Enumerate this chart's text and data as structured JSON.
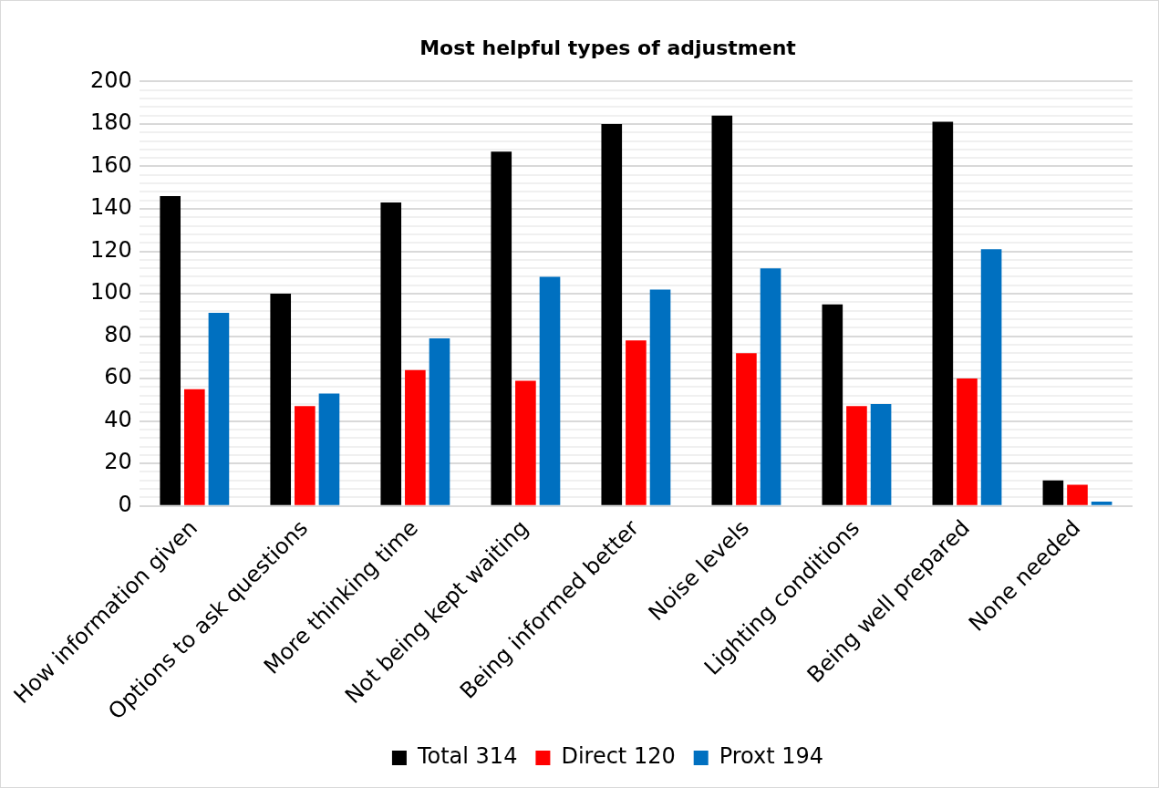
{
  "chart_data": {
    "type": "bar",
    "title": "Most helpful types of adjustment",
    "categories": [
      "How information given",
      "Options to ask questions",
      "More thinking time",
      "Not being kept waiting",
      "Being informed better",
      "Noise levels",
      "Lighting conditions",
      "Being well prepared",
      "None needed"
    ],
    "series": [
      {
        "name": "Total 314",
        "color": "#000000",
        "values": [
          146,
          100,
          143,
          167,
          180,
          184,
          95,
          181,
          12
        ]
      },
      {
        "name": "Direct 120",
        "color": "#ff0000",
        "values": [
          55,
          47,
          64,
          59,
          78,
          72,
          47,
          60,
          10
        ]
      },
      {
        "name": "Proxt 194",
        "color": "#0070c0",
        "values": [
          91,
          53,
          79,
          108,
          102,
          112,
          48,
          121,
          2
        ]
      }
    ],
    "ylim": [
      0,
      200
    ],
    "yticks": [
      0,
      {
        "value": 4,
        "label": null
      },
      {
        "value": 8,
        "label": null
      },
      {
        "value": 12,
        "label": null
      },
      {
        "value": 16,
        "label": null
      },
      20,
      {
        "value": 24,
        "label": null
      },
      {
        "value": 28,
        "label": null
      },
      {
        "value": 32,
        "label": null
      },
      {
        "value": 36,
        "label": null
      },
      40,
      {
        "value": 44,
        "label": null
      },
      {
        "value": 48,
        "label": null
      },
      {
        "value": 52,
        "label": null
      },
      {
        "value": 56,
        "label": null
      },
      60,
      {
        "value": 64,
        "label": null
      },
      {
        "value": 68,
        "label": null
      },
      {
        "value": 72,
        "label": null
      },
      {
        "value": 76,
        "label": null
      },
      80,
      {
        "value": 84,
        "label": null
      },
      {
        "value": 88,
        "label": null
      },
      {
        "value": 92,
        "label": null
      },
      {
        "value": 96,
        "label": null
      },
      100,
      {
        "value": 104,
        "label": null
      },
      {
        "value": 108,
        "label": null
      },
      {
        "value": 112,
        "label": null
      },
      {
        "value": 116,
        "label": null
      },
      120,
      {
        "value": 124,
        "label": null
      },
      {
        "value": 128,
        "label": null
      },
      {
        "value": 132,
        "label": null
      },
      {
        "value": 136,
        "label": null
      },
      140,
      {
        "value": 144,
        "label": null
      },
      {
        "value": 148,
        "label": null
      },
      {
        "value": 152,
        "label": null
      },
      {
        "value": 156,
        "label": null
      },
      160,
      {
        "value": 164,
        "label": null
      },
      {
        "value": 168,
        "label": null
      },
      {
        "value": 172,
        "label": null
      },
      {
        "value": 176,
        "label": null
      },
      180,
      {
        "value": 184,
        "label": null
      },
      {
        "value": 188,
        "label": null
      },
      {
        "value": 192,
        "label": null
      },
      {
        "value": 196,
        "label": null
      },
      200
    ],
    "grid": "y",
    "legend": "bottom"
  }
}
